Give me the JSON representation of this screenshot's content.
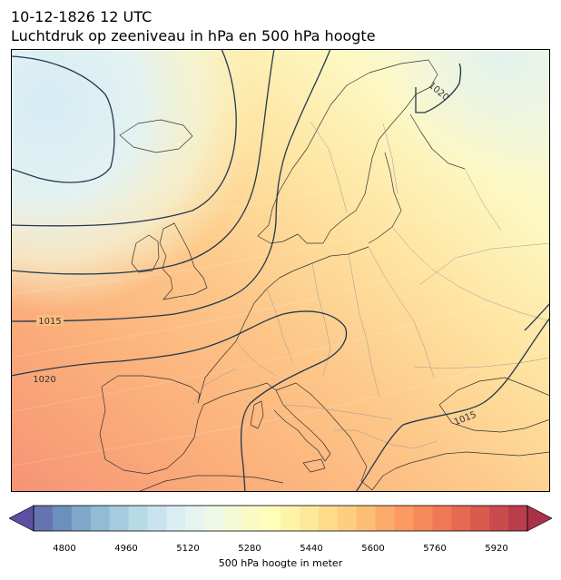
{
  "title": {
    "line1": "10-12-1826 12 UTC",
    "line2": "Luchtdruk op zeeniveau in hPa en 500 hPa hoogte"
  },
  "map": {
    "region": "Europe",
    "filled_field": "500 hPa geopotential height (m)",
    "contour_field": "sea level pressure (hPa)",
    "isobar_labels": [
      {
        "text": "1015",
        "where": "west Atlantic"
      },
      {
        "text": "1020",
        "where": "west Atlantic"
      },
      {
        "text": "1020",
        "where": "northern Scandinavia"
      },
      {
        "text": "1015",
        "where": "Balkans"
      }
    ],
    "colors": {
      "coastline": "#333333",
      "borders": "#9a9a9a",
      "isobars": "#23384f",
      "label_text": "#333333"
    }
  },
  "colorbar": {
    "label": "500 hPa hoogte in meter",
    "ticks": [
      "4800",
      "4960",
      "5120",
      "5280",
      "5440",
      "5600",
      "5760",
      "5920"
    ],
    "min": 4720,
    "max": 6000,
    "step": 40,
    "extend": "both",
    "colors": [
      "#5e4fa2",
      "#6574b1",
      "#6d8fbc",
      "#7fa8c9",
      "#92bcd4",
      "#a6cbdf",
      "#b8dae7",
      "#c9e4ef",
      "#daedf3",
      "#e6f4f0",
      "#eef8e4",
      "#f4fad6",
      "#fafbc4",
      "#fefdb9",
      "#fef4a8",
      "#fee99a",
      "#fedc8c",
      "#fdcd80",
      "#fdbd74",
      "#fcac6a",
      "#fb9a61",
      "#f7895a",
      "#f07955",
      "#e66951",
      "#d95a4f",
      "#c94b4e",
      "#b83e4d",
      "#a9324a"
    ]
  }
}
